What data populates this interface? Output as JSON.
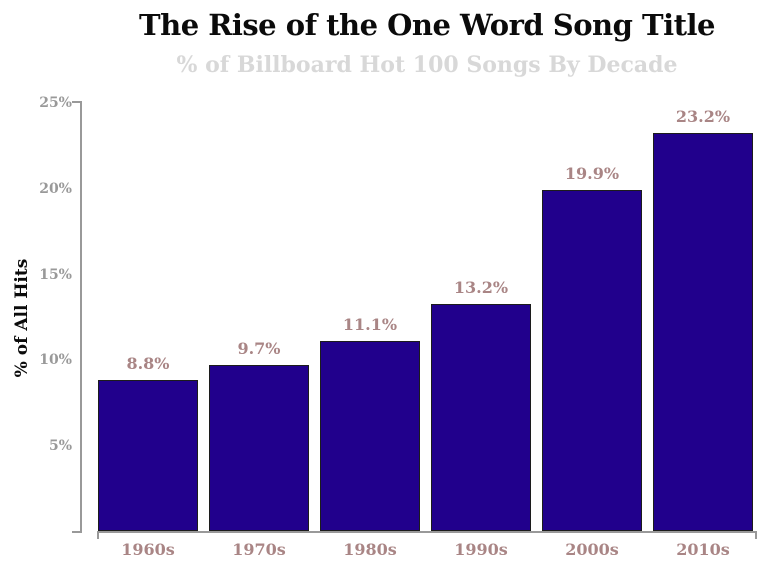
{
  "chart": {
    "title": "The Rise of the One Word Song Title",
    "subtitle": "% of Billboard Hot 100 Songs By Decade",
    "ylabel": "% of All Hits"
  },
  "chart_data": {
    "type": "bar",
    "title": "The Rise of the One Word Song Title",
    "subtitle": "% of Billboard Hot 100 Songs By Decade",
    "xlabel": "",
    "ylabel": "% of All Hits",
    "categories": [
      "1960s",
      "1970s",
      "1980s",
      "1990s",
      "2000s",
      "2010s"
    ],
    "values": [
      8.8,
      9.7,
      11.1,
      13.2,
      19.9,
      23.2
    ],
    "value_labels": [
      "8.8%",
      "9.7%",
      "11.1%",
      "13.2%",
      "19.9%",
      "23.2%"
    ],
    "ylim": [
      0,
      25
    ],
    "yticks": [
      5,
      10,
      15,
      20,
      25
    ],
    "ytick_labels": [
      "5%",
      "10%",
      "15%",
      "20%",
      "25%"
    ],
    "grid": false,
    "legend": false,
    "colors": {
      "bar_fill": "#21008C",
      "bar_stroke": "#1C1C1C",
      "value_label": "#A98585",
      "category_label": "#A98585",
      "ytick_label": "#999999",
      "axis_line": "#999999",
      "title": "#0B0B0B",
      "subtitle": "#D8D8D8",
      "ylabel": "#0B0B0B",
      "background": "#FFFFFF"
    }
  }
}
